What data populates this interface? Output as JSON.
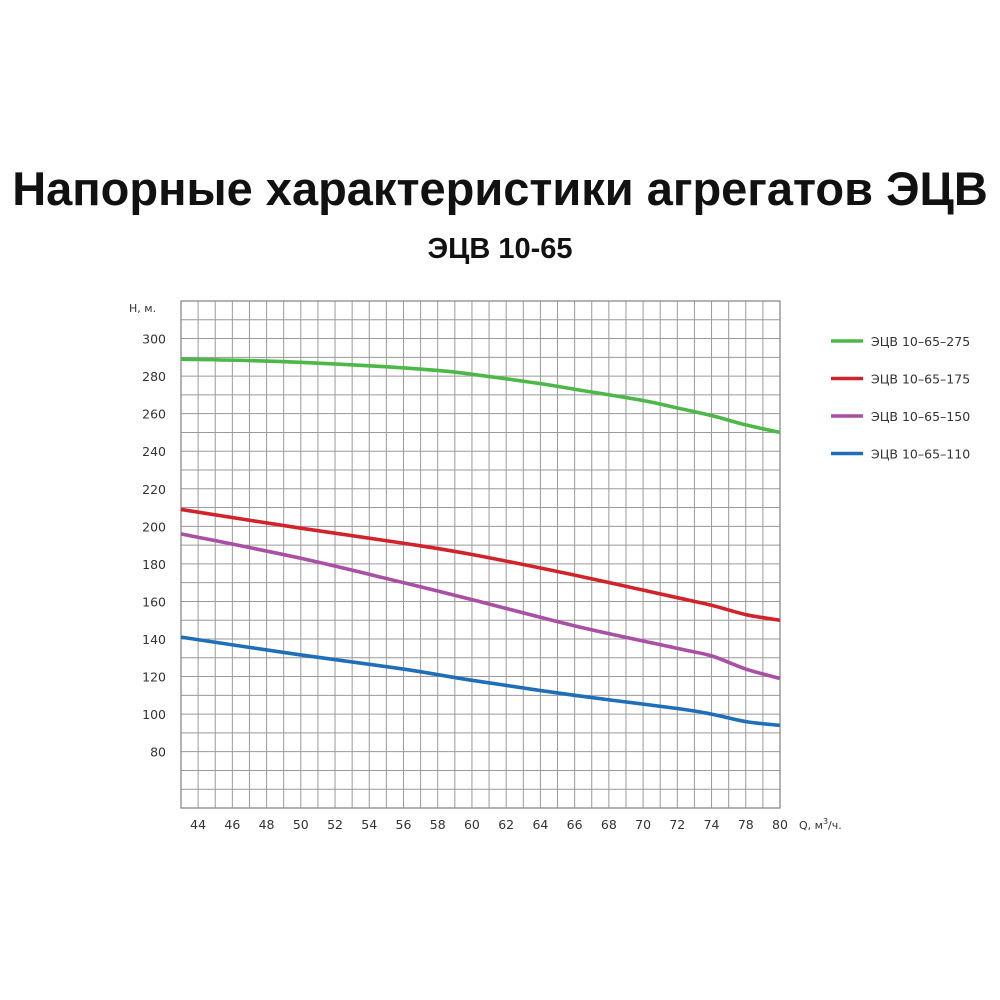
{
  "chart_data": {
    "type": "line",
    "title": "Напорные характеристики агрегатов ЭЦВ",
    "subtitle": "ЭЦВ 10-65",
    "ylabel": "H, м.",
    "xlabel_prefix": "Q, м",
    "xlabel_sup": "3",
    "xlabel_suffix": "/ч.",
    "xlim": [
      43,
      80
    ],
    "ylim": [
      50,
      320
    ],
    "grid": true,
    "grid_step_y": 10,
    "grid_columns": 35,
    "legend_position": "right",
    "x_ticks": [
      "44",
      "46",
      "48",
      "50",
      "52",
      "54",
      "56",
      "58",
      "60",
      "62",
      "64",
      "66",
      "68",
      "70",
      "72",
      "74",
      "78",
      "80"
    ],
    "y_ticks": [
      300,
      280,
      260,
      240,
      220,
      200,
      180,
      160,
      140,
      120,
      100,
      80
    ],
    "series": [
      {
        "name": "ЭЦВ 10–65–275",
        "color": "#4cb848",
        "x": [
          43,
          48,
          54,
          58,
          60,
          64,
          66,
          70,
          72,
          74,
          78,
          80
        ],
        "y": [
          289,
          288,
          285.5,
          283,
          281,
          276,
          273,
          267,
          263,
          259,
          254,
          250
        ]
      },
      {
        "name": "ЭЦВ 10–65–175",
        "color": "#d2232a",
        "x": [
          43,
          50,
          56,
          60,
          66,
          72,
          74,
          78,
          80
        ],
        "y": [
          209,
          199,
          191,
          185,
          174,
          162,
          158,
          153,
          150
        ]
      },
      {
        "name": "ЭЦВ 10–65–150",
        "color": "#a94fa4",
        "x": [
          43,
          50,
          56,
          60,
          66,
          72,
          74,
          78,
          80
        ],
        "y": [
          196,
          183,
          170,
          161,
          147,
          135,
          131,
          124,
          119
        ]
      },
      {
        "name": "ЭЦВ 10–65–110",
        "color": "#1f6fb8",
        "x": [
          43,
          50,
          56,
          60,
          66,
          72,
          74,
          78,
          80
        ],
        "y": [
          141,
          131.5,
          124,
          118,
          110,
          103,
          100,
          96,
          94
        ]
      }
    ]
  }
}
